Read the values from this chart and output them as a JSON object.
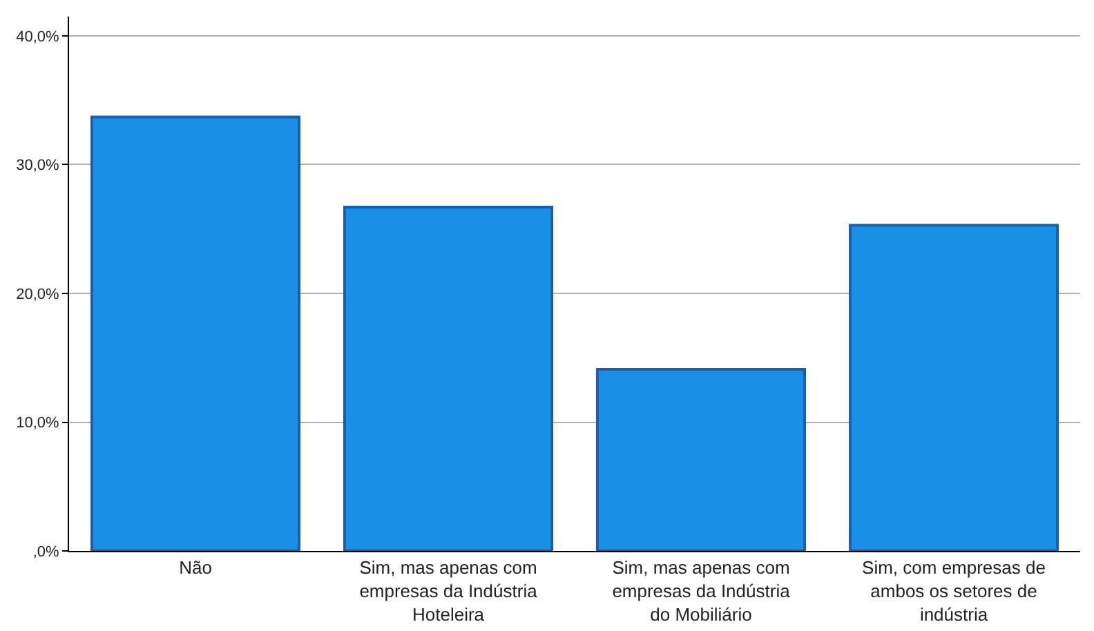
{
  "chart_data": {
    "type": "bar",
    "categories": [
      "Não",
      "Sim, mas apenas com empresas da Indústria Hoteleira",
      "Sim, mas apenas com empresas da Indústria do Mobiliário",
      "Sim, com empresas de ambos os setores de indústria"
    ],
    "values": [
      33.7,
      26.7,
      14.1,
      25.3
    ],
    "color": "#1a8fe6",
    "ylim": [
      0,
      41.5
    ],
    "yticks": [
      {
        "value": 0,
        "label": ",0%"
      },
      {
        "value": 10,
        "label": "10,0%"
      },
      {
        "value": 20,
        "label": "20,0%"
      },
      {
        "value": 30,
        "label": "30,0%"
      },
      {
        "value": 40,
        "label": "40,0%"
      }
    ],
    "grid": "y"
  }
}
